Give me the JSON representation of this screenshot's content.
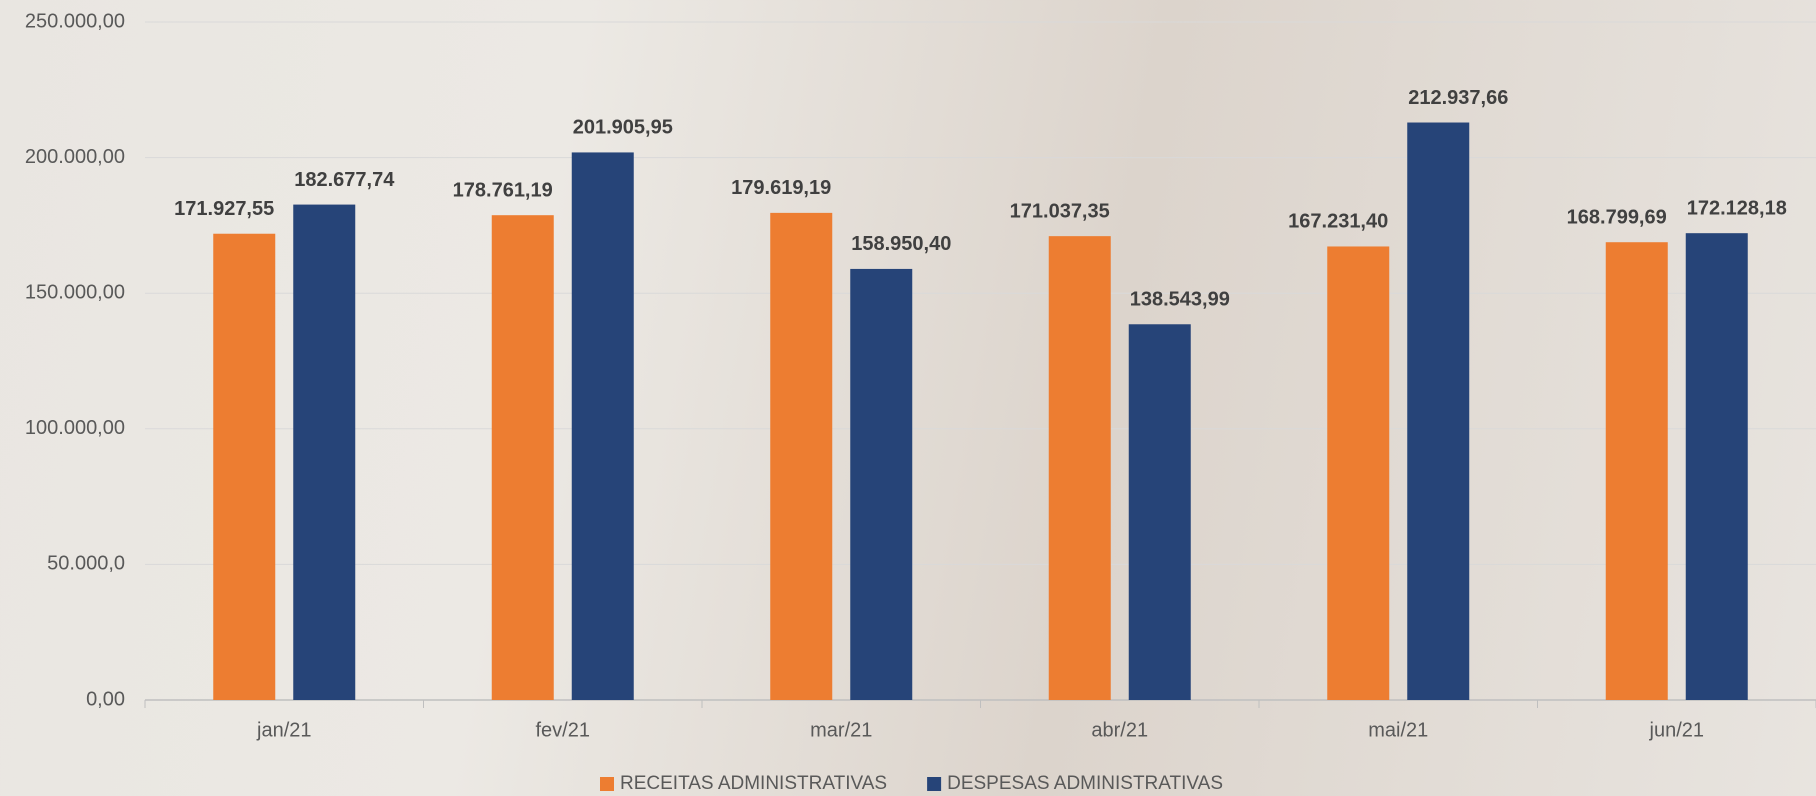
{
  "chart_data": {
    "type": "bar",
    "categories": [
      "jan/21",
      "fev/21",
      "mar/21",
      "abr/21",
      "mai/21",
      "jun/21"
    ],
    "series": [
      {
        "name": "RECEITAS ADMINISTRATIVAS",
        "color": "#ed7d31",
        "values": [
          171927.55,
          178761.19,
          179619.19,
          171037.35,
          167231.4,
          168799.69
        ],
        "value_labels": [
          "171.927,55",
          "178.761,19",
          "179.619,19",
          "171.037,35",
          "167.231,40",
          "168.799,69"
        ]
      },
      {
        "name": "DESPESAS ADMINISTRATIVAS",
        "color": "#264478",
        "values": [
          182677.74,
          201905.95,
          158950.4,
          138543.99,
          212937.66,
          172128.18
        ],
        "value_labels": [
          "182.677,74",
          "201.905,95",
          "158.950,40",
          "138.543,99",
          "212.937,66",
          "172.128,18"
        ]
      }
    ],
    "ylim": [
      0,
      250000
    ],
    "yticks": [
      {
        "value": 0,
        "label": "0,00"
      },
      {
        "value": 50000,
        "label": "50.000,0"
      },
      {
        "value": 100000,
        "label": "100.000,00"
      },
      {
        "value": 150000,
        "label": "150.000,00"
      },
      {
        "value": 200000,
        "label": "200.000,00"
      },
      {
        "value": 250000,
        "label": "250.000,00"
      }
    ],
    "grid": true,
    "legend": "bottom"
  }
}
